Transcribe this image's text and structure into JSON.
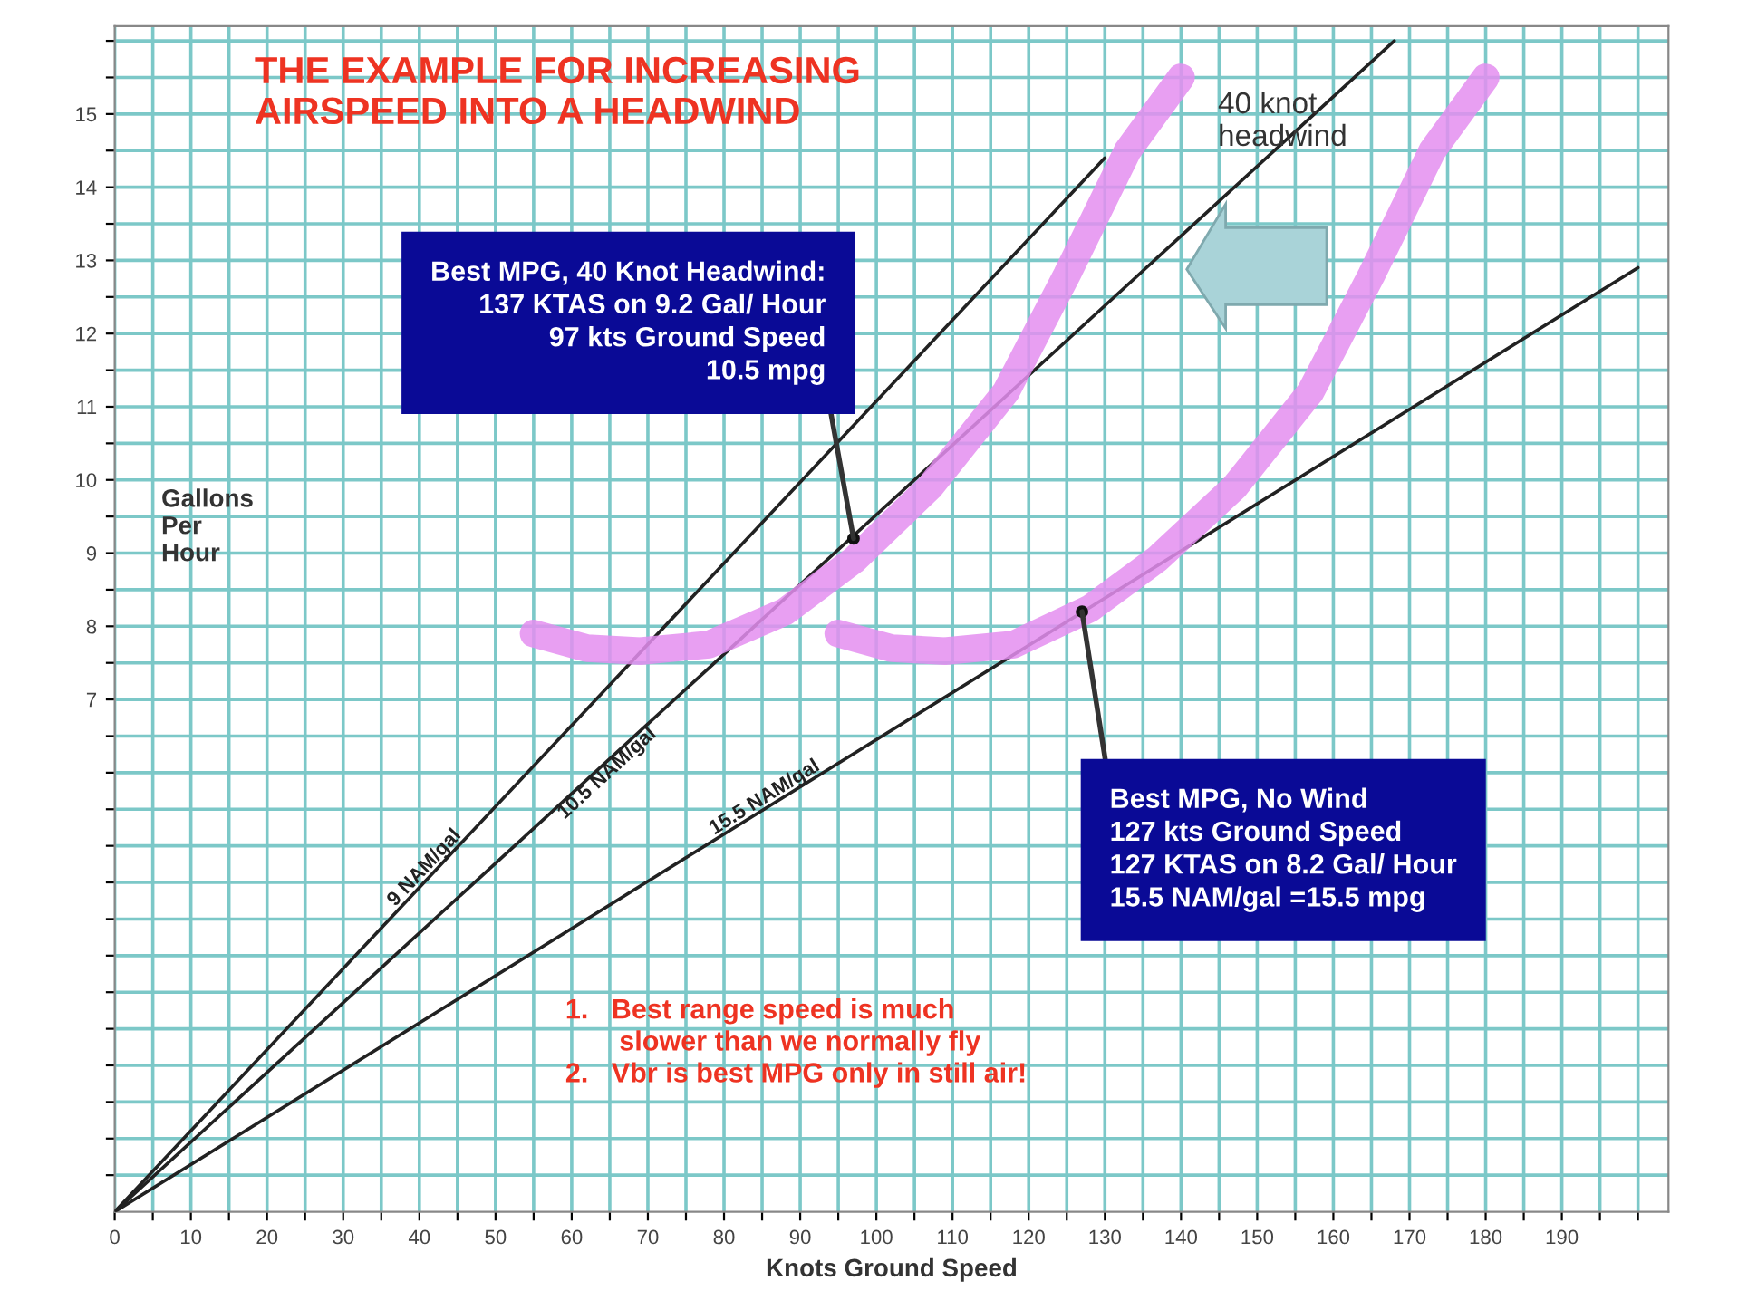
{
  "chart_data": {
    "type": "line",
    "title": "THE EXAMPLE FOR INCREASING\nAIRSPEED INTO A HEADWIND",
    "xlabel": "Knots Ground Speed",
    "ylabel": "Gallons\nPer\nHour",
    "series": [
      {
        "name": "9 NAM/gal",
        "color": "#222222",
        "x": [
          0,
          130
        ],
        "values": [
          0,
          14.4
        ]
      },
      {
        "name": "10.5 NAM/gal",
        "color": "#222222",
        "x": [
          0,
          168
        ],
        "values": [
          0,
          16.0
        ]
      },
      {
        "name": "15.5 NAM/gal",
        "color": "#222222",
        "x": [
          0,
          200
        ],
        "values": [
          0,
          12.9
        ]
      },
      {
        "color": "#e48ef0",
        "x": [
          55,
          62,
          69,
          78,
          88,
          97,
          107,
          117,
          125,
          133,
          140
        ],
        "values": [
          7.9,
          7.7,
          7.66,
          7.75,
          8.2,
          8.9,
          9.9,
          11.2,
          12.8,
          14.5,
          15.5
        ]
      },
      {
        "color": "#e48ef0",
        "x": [
          95,
          102,
          109,
          118,
          128,
          137,
          147,
          157,
          165,
          173,
          180
        ],
        "values": [
          7.9,
          7.7,
          7.66,
          7.75,
          8.24,
          8.93,
          9.9,
          11.2,
          12.8,
          14.5,
          15.5
        ]
      }
    ],
    "annotations": [
      {
        "text": "Best MPG, 40 Knot Headwind:\n137 KTAS on 9.2 Gal/ Hour\n97 kts Ground Speed\n10.5 mpg",
        "x": 97,
        "y": 9.2
      },
      {
        "text": "Best MPG, No Wind\n127 kts Ground Speed\n127 KTAS on 8.2 Gal/ Hour\n15.5 NAM/gal =15.5 mpg",
        "x": 127,
        "y": 8.2
      },
      "40 knot\nheadwind",
      "1.   Best range speed is much\n       slower than we normally fly\n2.   Vbr is best MPG only in still air!"
    ],
    "xlim": [
      0,
      204
    ],
    "ylim": [
      0,
      16.2
    ],
    "xticks": [
      0,
      {
        "value": 5,
        "label": null
      },
      10,
      {
        "value": 15,
        "label": null
      },
      20,
      {
        "value": 25,
        "label": null
      },
      30,
      {
        "value": 35,
        "label": null
      },
      40,
      {
        "value": 45,
        "label": null
      },
      50,
      {
        "value": 55,
        "label": null
      },
      60,
      {
        "value": 65,
        "label": null
      },
      70,
      {
        "value": 75,
        "label": null
      },
      80,
      {
        "value": 85,
        "label": null
      },
      90,
      {
        "value": 95,
        "label": null
      },
      100,
      {
        "value": 105,
        "label": null
      },
      110,
      {
        "value": 115,
        "label": null
      },
      120,
      {
        "value": 125,
        "label": null
      },
      130,
      {
        "value": 135,
        "label": null
      },
      140,
      {
        "value": 145,
        "label": null
      },
      150,
      {
        "value": 155,
        "label": null
      },
      160,
      {
        "value": 165,
        "label": null
      },
      170,
      {
        "value": 175,
        "label": null
      },
      180,
      {
        "value": 185,
        "label": null
      },
      190,
      {
        "value": 195,
        "label": null
      },
      {
        "value": 200,
        "label": null
      }
    ],
    "yticks": [
      {
        "value": 0.5,
        "label": null
      },
      {
        "value": 1,
        "label": null
      },
      {
        "value": 1.5,
        "label": null
      },
      {
        "value": 2,
        "label": null
      },
      {
        "value": 2.5,
        "label": null
      },
      {
        "value": 3,
        "label": null
      },
      {
        "value": 3.5,
        "label": null
      },
      {
        "value": 4,
        "label": null
      },
      {
        "value": 4.5,
        "label": null
      },
      {
        "value": 5,
        "label": null
      },
      {
        "value": 5.5,
        "label": null
      },
      {
        "value": 6,
        "label": null
      },
      {
        "value": 6.5,
        "label": null
      },
      7,
      {
        "value": 7.5,
        "label": null
      },
      8,
      {
        "value": 8.5,
        "label": null
      },
      9,
      {
        "value": 9.5,
        "label": null
      },
      10,
      {
        "value": 10.5,
        "label": null
      },
      11,
      {
        "value": 11.5,
        "label": null
      },
      12,
      {
        "value": 12.5,
        "label": null
      },
      13,
      {
        "value": 13.5,
        "label": null
      },
      14,
      {
        "value": 14.5,
        "label": null
      },
      15,
      {
        "value": 15.5,
        "label": null
      },
      {
        "value": 16,
        "label": null
      }
    ],
    "grid": true,
    "legend": false,
    "marker": "none",
    "line_style": "solid"
  }
}
